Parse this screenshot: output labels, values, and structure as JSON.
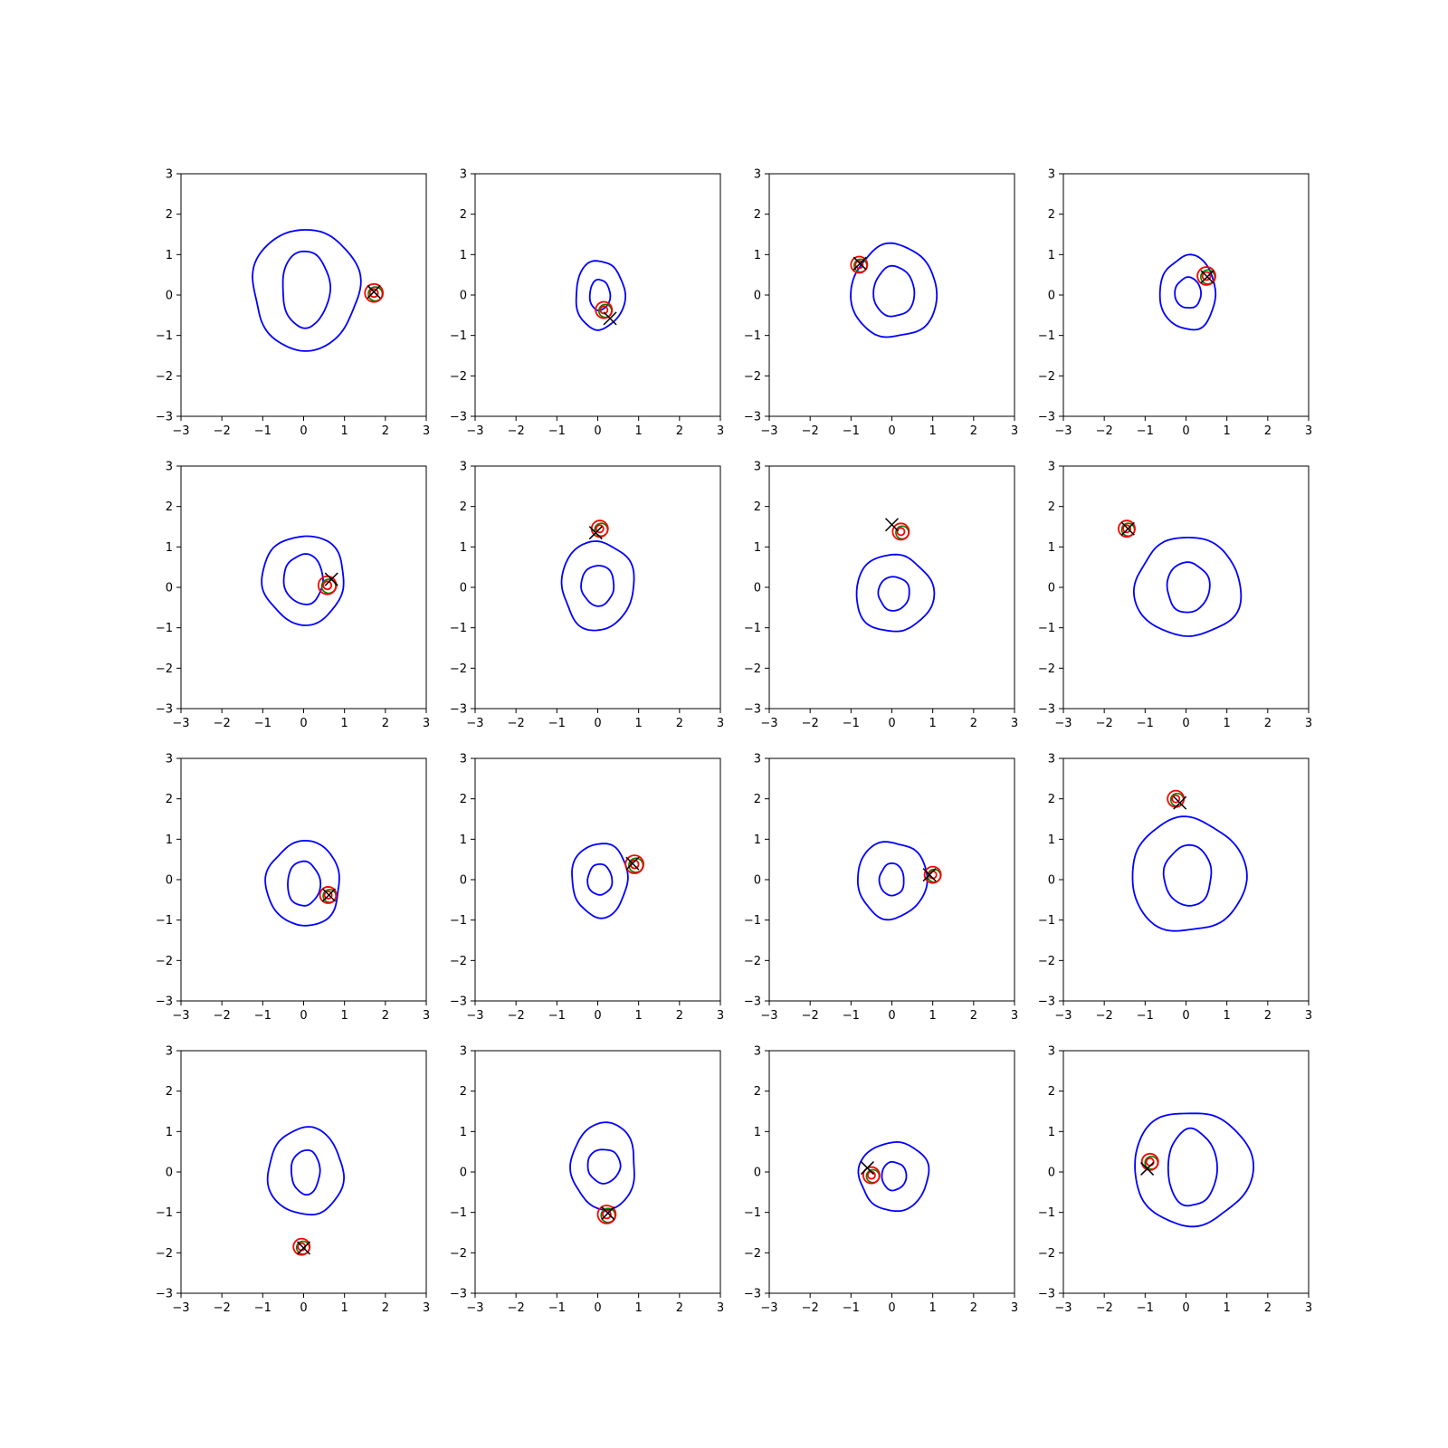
{
  "figure": {
    "grid": "4x4",
    "colors": {
      "outer_contour": "#0000ff",
      "inner_contour": "#0000ff",
      "red_contour": "#ff0000",
      "green_contour": "#008000",
      "cross_marker": "#000000",
      "axes": "#000000"
    }
  },
  "chart_data": [
    {
      "type": "contour",
      "xlim": [
        -3,
        3
      ],
      "ylim": [
        -3,
        3
      ],
      "grid": false,
      "xticks": [
        "−3",
        "−2",
        "−1",
        "0",
        "1",
        "2",
        "3"
      ],
      "yticks": [
        "−3",
        "−2",
        "−1",
        "0",
        "1",
        "2",
        "3"
      ],
      "blob": {
        "cx": 0.05,
        "cy": 0.15,
        "outer_rx": 1.3,
        "outer_ry": 1.5,
        "inner_rx": 0.58,
        "inner_ry": 0.95
      },
      "target": {
        "x": 1.72,
        "y": 0.05,
        "r": 0.22
      },
      "cross": {
        "x": 1.72,
        "y": 0.08
      }
    },
    {
      "type": "contour",
      "xlim": [
        -3,
        3
      ],
      "ylim": [
        -3,
        3
      ],
      "grid": false,
      "xticks": [
        "−3",
        "−2",
        "−1",
        "0",
        "1",
        "2",
        "3"
      ],
      "yticks": [
        "−3",
        "−2",
        "−1",
        "0",
        "1",
        "2",
        "3"
      ],
      "blob": {
        "cx": 0.05,
        "cy": 0.0,
        "outer_rx": 0.6,
        "outer_ry": 0.85,
        "inner_rx": 0.25,
        "inner_ry": 0.38
      },
      "target": {
        "x": 0.15,
        "y": -0.37,
        "r": 0.2
      },
      "cross": {
        "x": 0.3,
        "y": -0.58
      }
    },
    {
      "type": "contour",
      "xlim": [
        -3,
        3
      ],
      "ylim": [
        -3,
        3
      ],
      "grid": false,
      "xticks": [
        "−3",
        "−2",
        "−1",
        "0",
        "1",
        "2",
        "3"
      ],
      "yticks": [
        "−3",
        "−2",
        "−1",
        "0",
        "1",
        "2",
        "3"
      ],
      "blob": {
        "cx": 0.05,
        "cy": 0.08,
        "outer_rx": 1.05,
        "outer_ry": 1.15,
        "inner_rx": 0.5,
        "inner_ry": 0.62
      },
      "target": {
        "x": -0.8,
        "y": 0.75,
        "r": 0.2
      },
      "cross": {
        "x": -0.78,
        "y": 0.78
      }
    },
    {
      "type": "contour",
      "xlim": [
        -3,
        3
      ],
      "ylim": [
        -3,
        3
      ],
      "grid": false,
      "xticks": [
        "−3",
        "−2",
        "−1",
        "0",
        "1",
        "2",
        "3"
      ],
      "yticks": [
        "−3",
        "−2",
        "−1",
        "0",
        "1",
        "2",
        "3"
      ],
      "blob": {
        "cx": 0.05,
        "cy": 0.05,
        "outer_rx": 0.68,
        "outer_ry": 0.92,
        "inner_rx": 0.32,
        "inner_ry": 0.38
      },
      "target": {
        "x": 0.5,
        "y": 0.47,
        "r": 0.22
      },
      "cross": {
        "x": 0.52,
        "y": 0.45
      }
    },
    {
      "type": "contour",
      "xlim": [
        -3,
        3
      ],
      "ylim": [
        -3,
        3
      ],
      "grid": false,
      "xticks": [
        "−3",
        "−2",
        "−1",
        "0",
        "1",
        "2",
        "3"
      ],
      "yticks": [
        "−3",
        "−2",
        "−1",
        "0",
        "1",
        "2",
        "3"
      ],
      "blob": {
        "cx": 0.0,
        "cy": 0.2,
        "outer_rx": 1.0,
        "outer_ry": 1.1,
        "inner_rx": 0.48,
        "inner_ry": 0.62
      },
      "target": {
        "x": 0.58,
        "y": 0.05,
        "r": 0.22
      },
      "cross": {
        "x": 0.68,
        "y": 0.2
      }
    },
    {
      "type": "contour",
      "xlim": [
        -3,
        3
      ],
      "ylim": [
        -3,
        3
      ],
      "grid": false,
      "xticks": [
        "−3",
        "−2",
        "−1",
        "0",
        "1",
        "2",
        "3"
      ],
      "yticks": [
        "−3",
        "−2",
        "−1",
        "0",
        "1",
        "2",
        "3"
      ],
      "blob": {
        "cx": 0.0,
        "cy": 0.05,
        "outer_rx": 0.88,
        "outer_ry": 1.1,
        "inner_rx": 0.4,
        "inner_ry": 0.5
      },
      "target": {
        "x": 0.05,
        "y": 1.45,
        "r": 0.2
      },
      "cross": {
        "x": -0.05,
        "y": 1.35
      }
    },
    {
      "type": "contour",
      "xlim": [
        -3,
        3
      ],
      "ylim": [
        -3,
        3
      ],
      "grid": false,
      "xticks": [
        "−3",
        "−2",
        "−1",
        "0",
        "1",
        "2",
        "3"
      ],
      "yticks": [
        "−3",
        "−2",
        "−1",
        "0",
        "1",
        "2",
        "3"
      ],
      "blob": {
        "cx": 0.05,
        "cy": -0.15,
        "outer_rx": 0.95,
        "outer_ry": 0.95,
        "inner_rx": 0.38,
        "inner_ry": 0.42
      },
      "target": {
        "x": 0.22,
        "y": 1.38,
        "r": 0.2
      },
      "cross": {
        "x": 0.0,
        "y": 1.55
      }
    },
    {
      "type": "contour",
      "xlim": [
        -3,
        3
      ],
      "ylim": [
        -3,
        3
      ],
      "grid": false,
      "xticks": [
        "−3",
        "−2",
        "−1",
        "0",
        "1",
        "2",
        "3"
      ],
      "yticks": [
        "−3",
        "−2",
        "−1",
        "0",
        "1",
        "2",
        "3"
      ],
      "blob": {
        "cx": 0.05,
        "cy": 0.0,
        "outer_rx": 1.3,
        "outer_ry": 1.22,
        "inner_rx": 0.52,
        "inner_ry": 0.62
      },
      "target": {
        "x": -1.45,
        "y": 1.45,
        "r": 0.2
      },
      "cross": {
        "x": -1.42,
        "y": 1.45
      }
    },
    {
      "type": "contour",
      "xlim": [
        -3,
        3
      ],
      "ylim": [
        -3,
        3
      ],
      "grid": false,
      "xticks": [
        "−3",
        "−2",
        "−1",
        "0",
        "1",
        "2",
        "3"
      ],
      "yticks": [
        "−3",
        "−2",
        "−1",
        "0",
        "1",
        "2",
        "3"
      ],
      "blob": {
        "cx": 0.0,
        "cy": -0.1,
        "outer_rx": 0.9,
        "outer_ry": 1.05,
        "inner_rx": 0.4,
        "inner_ry": 0.55
      },
      "target": {
        "x": 0.6,
        "y": -0.38,
        "r": 0.2
      },
      "cross": {
        "x": 0.62,
        "y": -0.38
      }
    },
    {
      "type": "contour",
      "xlim": [
        -3,
        3
      ],
      "ylim": [
        -3,
        3
      ],
      "grid": false,
      "xticks": [
        "−3",
        "−2",
        "−1",
        "0",
        "1",
        "2",
        "3"
      ],
      "yticks": [
        "−3",
        "−2",
        "−1",
        "0",
        "1",
        "2",
        "3"
      ],
      "blob": {
        "cx": 0.05,
        "cy": 0.0,
        "outer_rx": 0.68,
        "outer_ry": 0.92,
        "inner_rx": 0.3,
        "inner_ry": 0.38
      },
      "target": {
        "x": 0.9,
        "y": 0.38,
        "r": 0.22
      },
      "cross": {
        "x": 0.85,
        "y": 0.4
      }
    },
    {
      "type": "contour",
      "xlim": [
        -3,
        3
      ],
      "ylim": [
        -3,
        3
      ],
      "grid": false,
      "xticks": [
        "−3",
        "−2",
        "−1",
        "0",
        "1",
        "2",
        "3"
      ],
      "yticks": [
        "−3",
        "−2",
        "−1",
        "0",
        "1",
        "2",
        "3"
      ],
      "blob": {
        "cx": 0.0,
        "cy": 0.0,
        "outer_rx": 0.85,
        "outer_ry": 0.95,
        "inner_rx": 0.3,
        "inner_ry": 0.4
      },
      "target": {
        "x": 1.0,
        "y": 0.12,
        "r": 0.2
      },
      "cross": {
        "x": 0.92,
        "y": 0.12
      }
    },
    {
      "type": "contour",
      "xlim": [
        -3,
        3
      ],
      "ylim": [
        -3,
        3
      ],
      "grid": false,
      "xticks": [
        "−3",
        "−2",
        "−1",
        "0",
        "1",
        "2",
        "3"
      ],
      "yticks": [
        "−3",
        "−2",
        "−1",
        "0",
        "1",
        "2",
        "3"
      ],
      "blob": {
        "cx": 0.05,
        "cy": 0.1,
        "outer_rx": 1.4,
        "outer_ry": 1.4,
        "inner_rx": 0.58,
        "inner_ry": 0.75
      },
      "target": {
        "x": -0.25,
        "y": 2.0,
        "r": 0.2
      },
      "cross": {
        "x": -0.15,
        "y": 1.9
      }
    },
    {
      "type": "contour",
      "xlim": [
        -3,
        3
      ],
      "ylim": [
        -3,
        3
      ],
      "grid": false,
      "xticks": [
        "−3",
        "−2",
        "−1",
        "0",
        "1",
        "2",
        "3"
      ],
      "yticks": [
        "−3",
        "−2",
        "−1",
        "0",
        "1",
        "2",
        "3"
      ],
      "blob": {
        "cx": 0.05,
        "cy": 0.0,
        "outer_rx": 0.92,
        "outer_ry": 1.08,
        "inner_rx": 0.35,
        "inner_ry": 0.55
      },
      "target": {
        "x": -0.05,
        "y": -1.85,
        "r": 0.2
      },
      "cross": {
        "x": 0.0,
        "y": -1.88
      }
    },
    {
      "type": "contour",
      "xlim": [
        -3,
        3
      ],
      "ylim": [
        -3,
        3
      ],
      "grid": false,
      "xticks": [
        "−3",
        "−2",
        "−1",
        "0",
        "1",
        "2",
        "3"
      ],
      "yticks": [
        "−3",
        "−2",
        "−1",
        "0",
        "1",
        "2",
        "3"
      ],
      "blob": {
        "cx": 0.15,
        "cy": 0.15,
        "outer_rx": 0.78,
        "outer_ry": 1.08,
        "inner_rx": 0.4,
        "inner_ry": 0.42
      },
      "target": {
        "x": 0.22,
        "y": -1.05,
        "r": 0.22
      },
      "cross": {
        "x": 0.25,
        "y": -1.02
      }
    },
    {
      "type": "contour",
      "xlim": [
        -3,
        3
      ],
      "ylim": [
        -3,
        3
      ],
      "grid": false,
      "xticks": [
        "−3",
        "−2",
        "−1",
        "0",
        "1",
        "2",
        "3"
      ],
      "yticks": [
        "−3",
        "−2",
        "−1",
        "0",
        "1",
        "2",
        "3"
      ],
      "blob": {
        "cx": 0.05,
        "cy": -0.1,
        "outer_rx": 0.85,
        "outer_ry": 0.85,
        "inner_rx": 0.3,
        "inner_ry": 0.35
      },
      "target": {
        "x": -0.5,
        "y": -0.08,
        "r": 0.2
      },
      "cross": {
        "x": -0.6,
        "y": 0.1
      }
    },
    {
      "type": "contour",
      "xlim": [
        -3,
        3
      ],
      "ylim": [
        -3,
        3
      ],
      "grid": false,
      "xticks": [
        "−3",
        "−2",
        "−1",
        "0",
        "1",
        "2",
        "3"
      ],
      "yticks": [
        "−3",
        "−2",
        "−1",
        "0",
        "1",
        "2",
        "3"
      ],
      "blob": {
        "cx": 0.15,
        "cy": 0.1,
        "outer_rx": 1.45,
        "outer_ry": 1.4,
        "inner_rx": 0.6,
        "inner_ry": 0.95
      },
      "target": {
        "x": -0.88,
        "y": 0.25,
        "r": 0.2
      },
      "cross": {
        "x": -0.95,
        "y": 0.08
      }
    }
  ]
}
